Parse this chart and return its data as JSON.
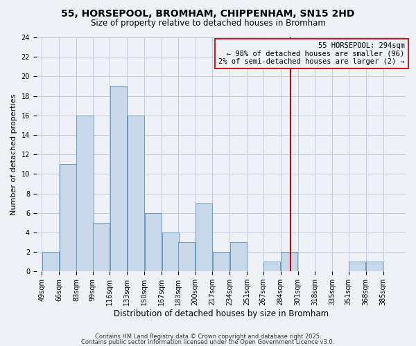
{
  "title": "55, HORSEPOOL, BROMHAM, CHIPPENHAM, SN15 2HD",
  "subtitle": "Size of property relative to detached houses in Bromham",
  "xlabel": "Distribution of detached houses by size in Bromham",
  "ylabel": "Number of detached properties",
  "bin_labels": [
    "49sqm",
    "66sqm",
    "83sqm",
    "99sqm",
    "116sqm",
    "133sqm",
    "150sqm",
    "167sqm",
    "183sqm",
    "200sqm",
    "217sqm",
    "234sqm",
    "251sqm",
    "267sqm",
    "284sqm",
    "301sqm",
    "318sqm",
    "335sqm",
    "351sqm",
    "368sqm",
    "385sqm"
  ],
  "bin_edges": [
    49,
    66,
    83,
    99,
    116,
    133,
    150,
    167,
    183,
    200,
    217,
    234,
    251,
    267,
    284,
    301,
    318,
    335,
    351,
    368,
    385
  ],
  "counts": [
    2,
    11,
    16,
    5,
    19,
    16,
    6,
    4,
    3,
    7,
    2,
    3,
    0,
    1,
    2,
    0,
    0,
    0,
    1,
    1,
    0
  ],
  "bar_color": "#c8d8e8",
  "bar_edge_color": "#6699bb",
  "vline_x": 294,
  "vline_color": "#cc0000",
  "annotation_title": "55 HORSEPOOL: 294sqm",
  "annotation_line1": "← 98% of detached houses are smaller (96)",
  "annotation_line2": "2% of semi-detached houses are larger (2) →",
  "annotation_box_color": "#cc0000",
  "ylim": [
    0,
    24
  ],
  "yticks": [
    0,
    2,
    4,
    6,
    8,
    10,
    12,
    14,
    16,
    18,
    20,
    22,
    24
  ],
  "grid_color": "#c0ccdd",
  "background_color": "#eef2f8",
  "footer1": "Contains HM Land Registry data © Crown copyright and database right 2025.",
  "footer2": "Contains public sector information licensed under the Open Government Licence v3.0.",
  "title_fontsize": 10,
  "subtitle_fontsize": 8.5,
  "xlabel_fontsize": 8.5,
  "ylabel_fontsize": 8,
  "tick_fontsize": 7,
  "annotation_fontsize": 7.5,
  "footer_fontsize": 6.0
}
